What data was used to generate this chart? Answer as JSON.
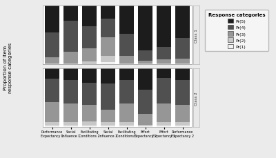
{
  "categories": [
    "Performance\nExpectancy 1",
    "Social\nInfluence 1",
    "Facilitating\nConditions 2",
    "Social\nInfluence 2",
    "Facilitating\nConditions 1",
    "Effort\nExpectancy 2",
    "Effort\nExpectancy 1",
    "Performance\nExpectancy 2"
  ],
  "class1": {
    "pr1": [
      0.0,
      0.0,
      0.0,
      0.04,
      0.0,
      0.0,
      0.0,
      0.0
    ],
    "pr2": [
      0.02,
      0.02,
      0.05,
      0.1,
      0.02,
      0.01,
      0.01,
      0.02
    ],
    "pr3": [
      0.1,
      0.2,
      0.22,
      0.32,
      0.12,
      0.05,
      0.07,
      0.08
    ],
    "pr4": [
      0.42,
      0.52,
      0.38,
      0.32,
      0.38,
      0.18,
      0.22,
      0.35
    ],
    "pr5": [
      0.46,
      0.26,
      0.35,
      0.22,
      0.48,
      0.76,
      0.7,
      0.55
    ]
  },
  "class2": {
    "pr1": [
      0.02,
      0.02,
      0.02,
      0.02,
      0.02,
      0.01,
      0.02,
      0.02
    ],
    "pr2": [
      0.06,
      0.06,
      0.08,
      0.06,
      0.06,
      0.03,
      0.06,
      0.06
    ],
    "pr3": [
      0.35,
      0.32,
      0.28,
      0.22,
      0.32,
      0.18,
      0.32,
      0.3
    ],
    "pr4": [
      0.4,
      0.4,
      0.38,
      0.44,
      0.4,
      0.42,
      0.44,
      0.42
    ],
    "pr5": [
      0.17,
      0.2,
      0.24,
      0.26,
      0.2,
      0.36,
      0.16,
      0.2
    ]
  },
  "colors": [
    "#f2f2f2",
    "#c8c8c8",
    "#969696",
    "#505050",
    "#1c1c1c"
  ],
  "legend_labels": [
    "Pr(5)",
    "Pr(4)",
    "Pr(3)",
    "Pr(2)",
    "Pr(1)"
  ],
  "legend_colors": [
    "#1c1c1c",
    "#505050",
    "#969696",
    "#c8c8c8",
    "#f2f2f2"
  ],
  "ylabel": "Proportion of item\nresponse categories",
  "class1_label": "Class 1",
  "class2_label": "Class 2",
  "background_color": "#ebebeb",
  "panel_bg": "#ffffff"
}
